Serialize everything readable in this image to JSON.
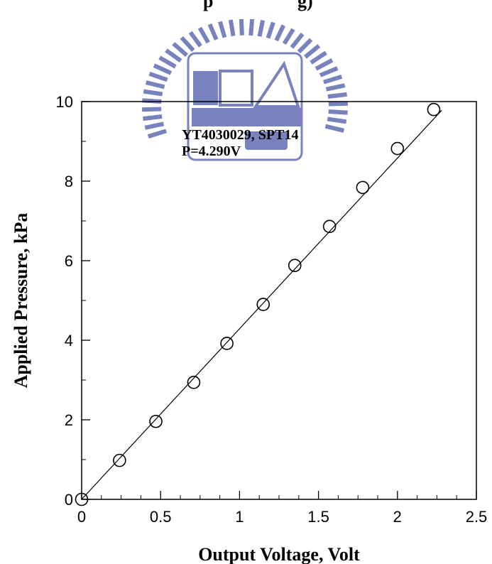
{
  "chart_data": {
    "type": "scatter",
    "top_text_fragment": "p",
    "top_text_fragment_right": "g)",
    "xlabel": "Output Voltage, Volt",
    "ylabel": "Applied Pressure, kPa",
    "xlim": [
      0,
      2.5
    ],
    "ylim": [
      0,
      10
    ],
    "x_ticks": [
      "0",
      "0.5",
      "1",
      "1.5",
      "2",
      "2.5"
    ],
    "y_ticks": [
      "0",
      "2",
      "4",
      "6",
      "8",
      "10"
    ],
    "annotations": [
      "YT4030029, SPT14",
      "P=4.290V"
    ],
    "grid": false,
    "series": [
      {
        "marker": "open-circle",
        "x": [
          0,
          0.24,
          0.47,
          0.71,
          0.92,
          1.15,
          1.35,
          1.57,
          1.78,
          2.0,
          2.23
        ],
        "y": [
          0,
          0.98,
          1.96,
          2.94,
          3.92,
          4.9,
          5.88,
          6.86,
          7.84,
          8.82,
          9.8
        ]
      }
    ],
    "fit_line": {
      "x": [
        0,
        2.28
      ],
      "y": [
        0,
        9.78
      ]
    },
    "watermark": {
      "lettering": "NCTU ESA 1896",
      "color": "#4b5aa8"
    }
  }
}
